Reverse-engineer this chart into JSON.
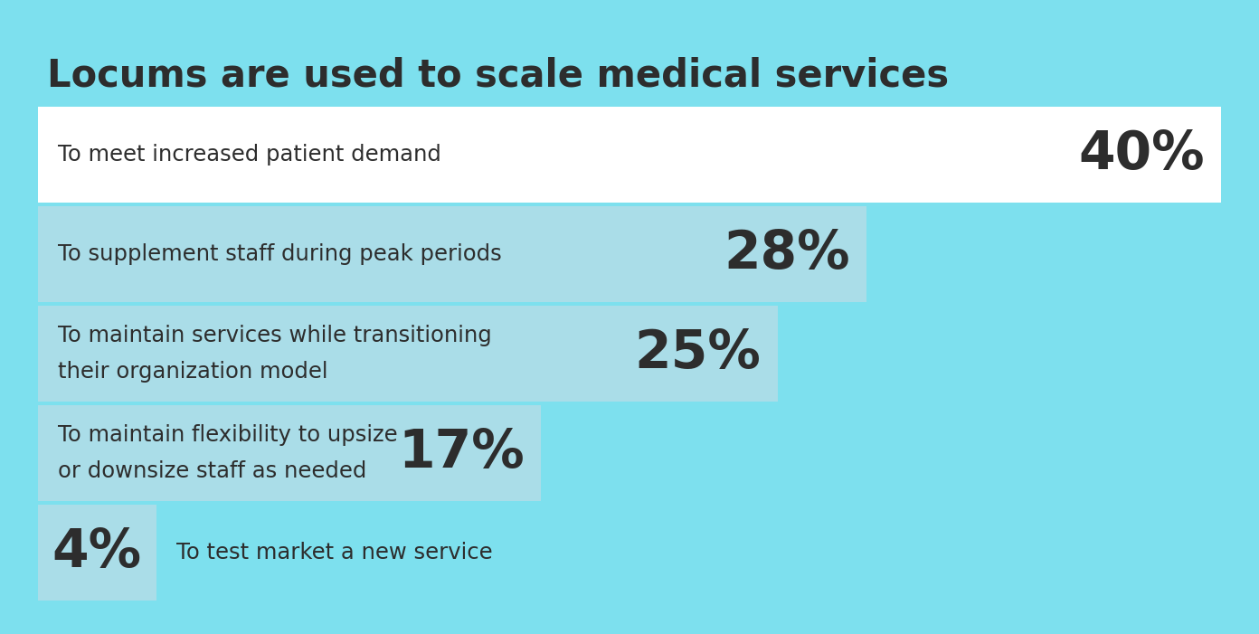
{
  "title": "Locums are used to scale medical services",
  "background_color": "#7DE0EE",
  "bar_color_white": "#FFFFFF",
  "bar_color_light": "#AADDE8",
  "text_color": "#2d2d2d",
  "items": [
    {
      "label": "To meet increased patient demand",
      "label2": "",
      "pct": "40%",
      "value": 40,
      "white": true
    },
    {
      "label": "To supplement staff during peak periods",
      "label2": "",
      "pct": "28%",
      "value": 28,
      "white": false
    },
    {
      "label": "To maintain services while transitioning",
      "label2": "their organization model",
      "pct": "25%",
      "value": 25,
      "white": false
    },
    {
      "label": "To maintain flexibility to upsize",
      "label2": "or downsize staff as needed",
      "pct": "17%",
      "value": 17,
      "white": false
    },
    {
      "label": "",
      "label2": "To test market a new service",
      "pct": "4%",
      "value": 4,
      "white": false
    }
  ],
  "title_fontsize": 30,
  "label_fontsize": 17.5,
  "pct_fontsize": 42
}
